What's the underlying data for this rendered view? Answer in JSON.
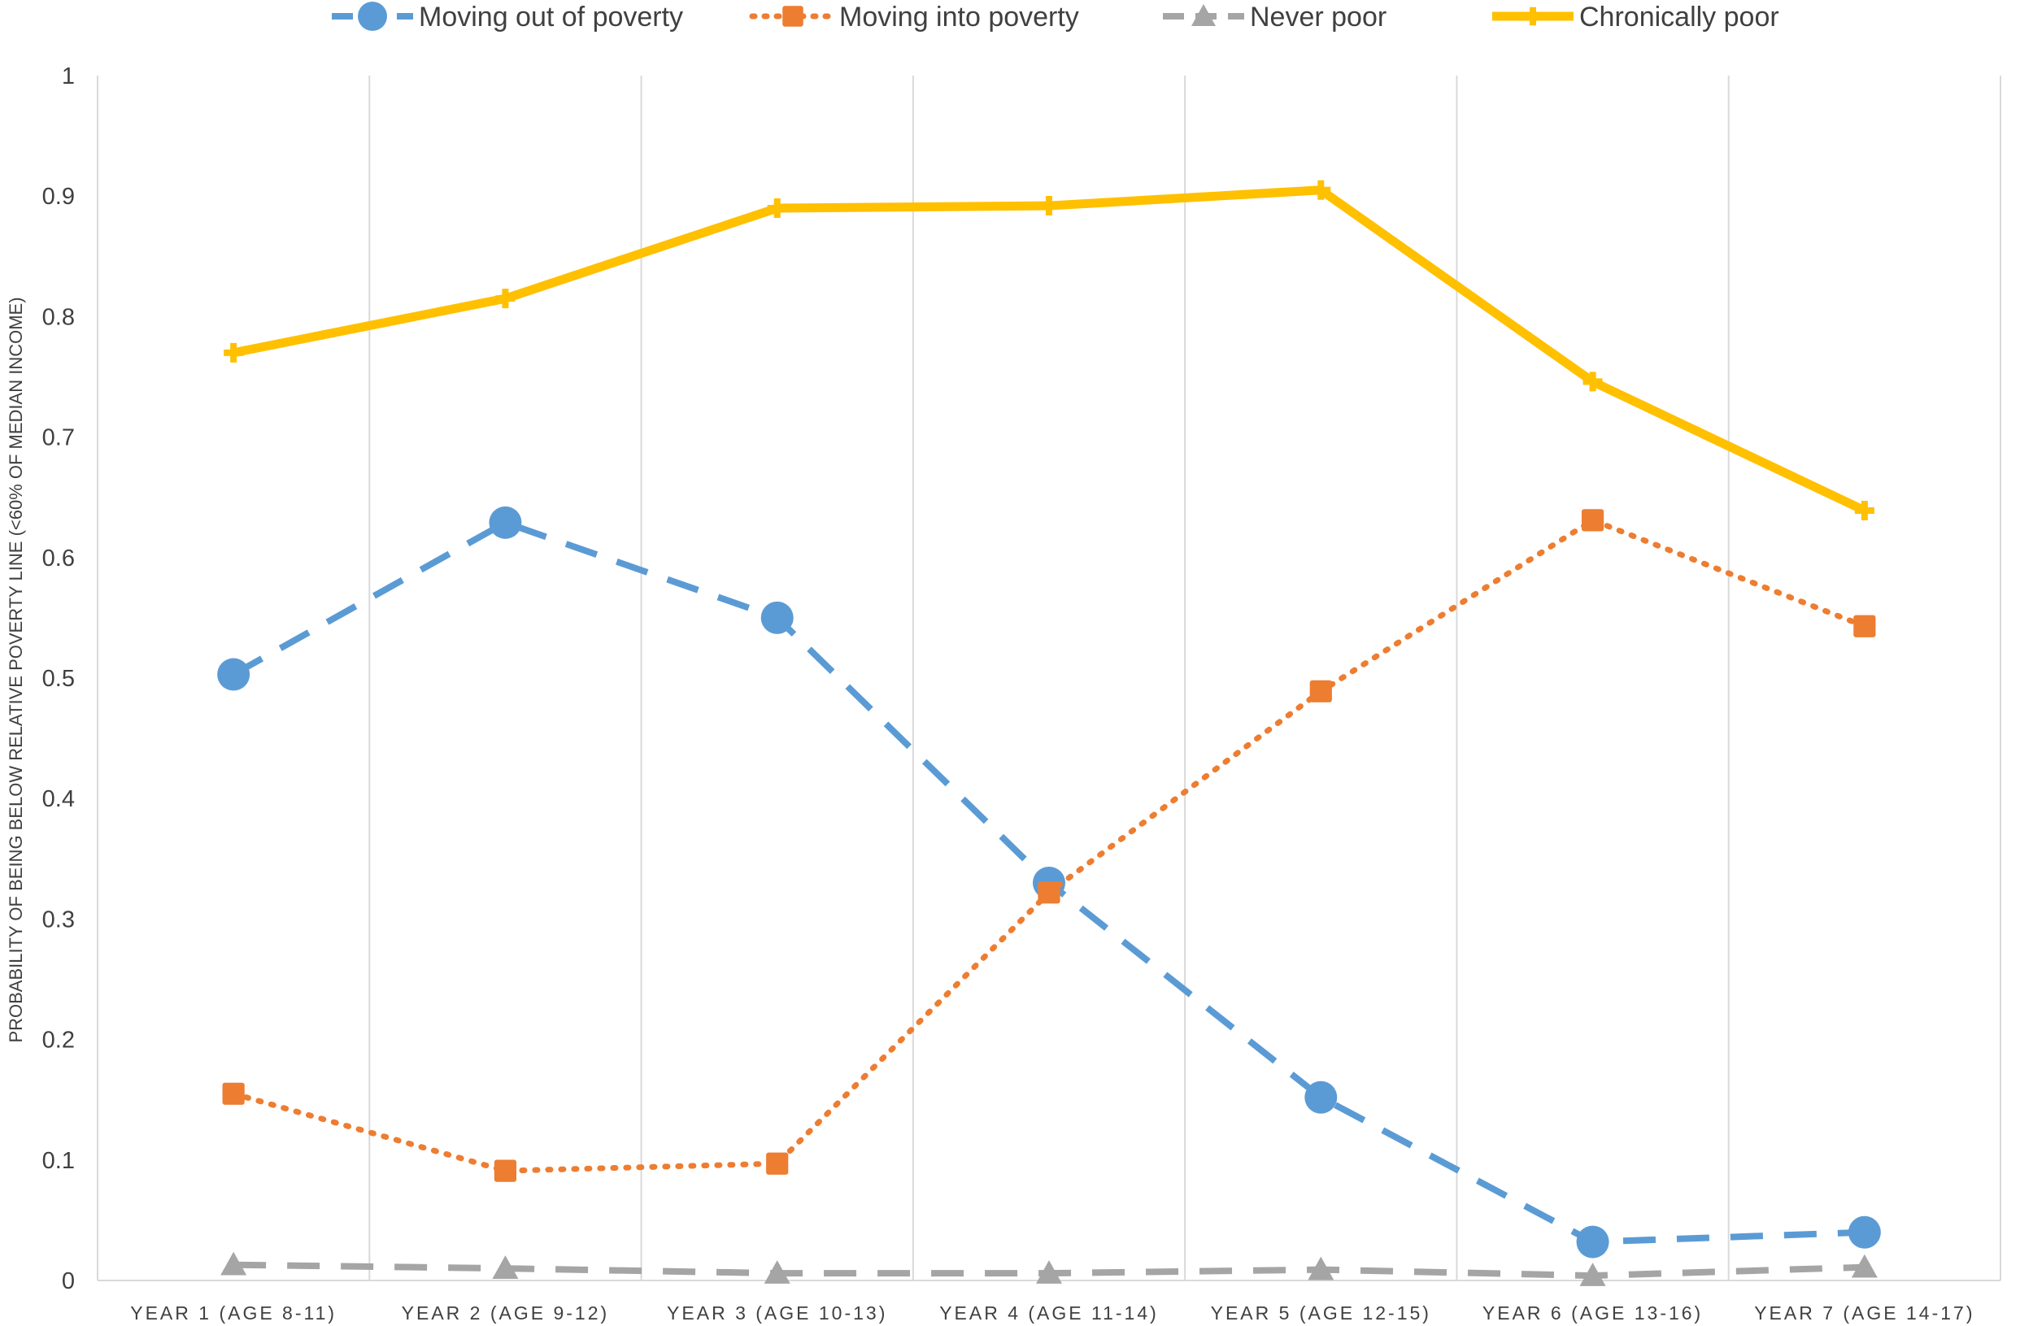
{
  "chart_data": {
    "type": "line",
    "title": "",
    "xlabel": "",
    "ylabel": "PROBABILITY OF BEING BELOW RELATIVE POVERTY LINE (<60% OF MEDIAN INCOME)",
    "ylim": [
      0,
      1
    ],
    "yticks": [
      "0",
      "0.1",
      "0.2",
      "0.3",
      "0.4",
      "0.5",
      "0.6",
      "0.7",
      "0.8",
      "0.9",
      "1"
    ],
    "categories": [
      "YEAR 1 (AGE 8-11)",
      "YEAR 2 (AGE 9-12)",
      "YEAR 3 (AGE 10-13)",
      "YEAR 4 (AGE 11-14)",
      "YEAR 5 (AGE 12-15)",
      "YEAR 6 (AGE 13-16)",
      "YEAR 7 (AGE 14-17)"
    ],
    "legend_position": "top",
    "grid": "vertical",
    "series": [
      {
        "name": "Moving out of poverty",
        "color": "#5B9BD5",
        "line_style": "dashed",
        "marker": "circle",
        "values": [
          0.503,
          0.629,
          0.55,
          0.33,
          0.152,
          0.032,
          0.04
        ]
      },
      {
        "name": "Moving into poverty",
        "color": "#ED7D31",
        "line_style": "dotted",
        "marker": "square",
        "values": [
          0.155,
          0.091,
          0.097,
          0.322,
          0.489,
          0.631,
          0.543
        ]
      },
      {
        "name": "Never poor",
        "color": "#A5A5A5",
        "line_style": "dashed",
        "marker": "triangle",
        "values": [
          0.013,
          0.01,
          0.006,
          0.006,
          0.009,
          0.004,
          0.011
        ]
      },
      {
        "name": "Chronically poor",
        "color": "#FFC000",
        "line_style": "solid",
        "marker": "plus",
        "values": [
          0.77,
          0.815,
          0.89,
          0.892,
          0.905,
          0.746,
          0.639
        ]
      }
    ]
  }
}
